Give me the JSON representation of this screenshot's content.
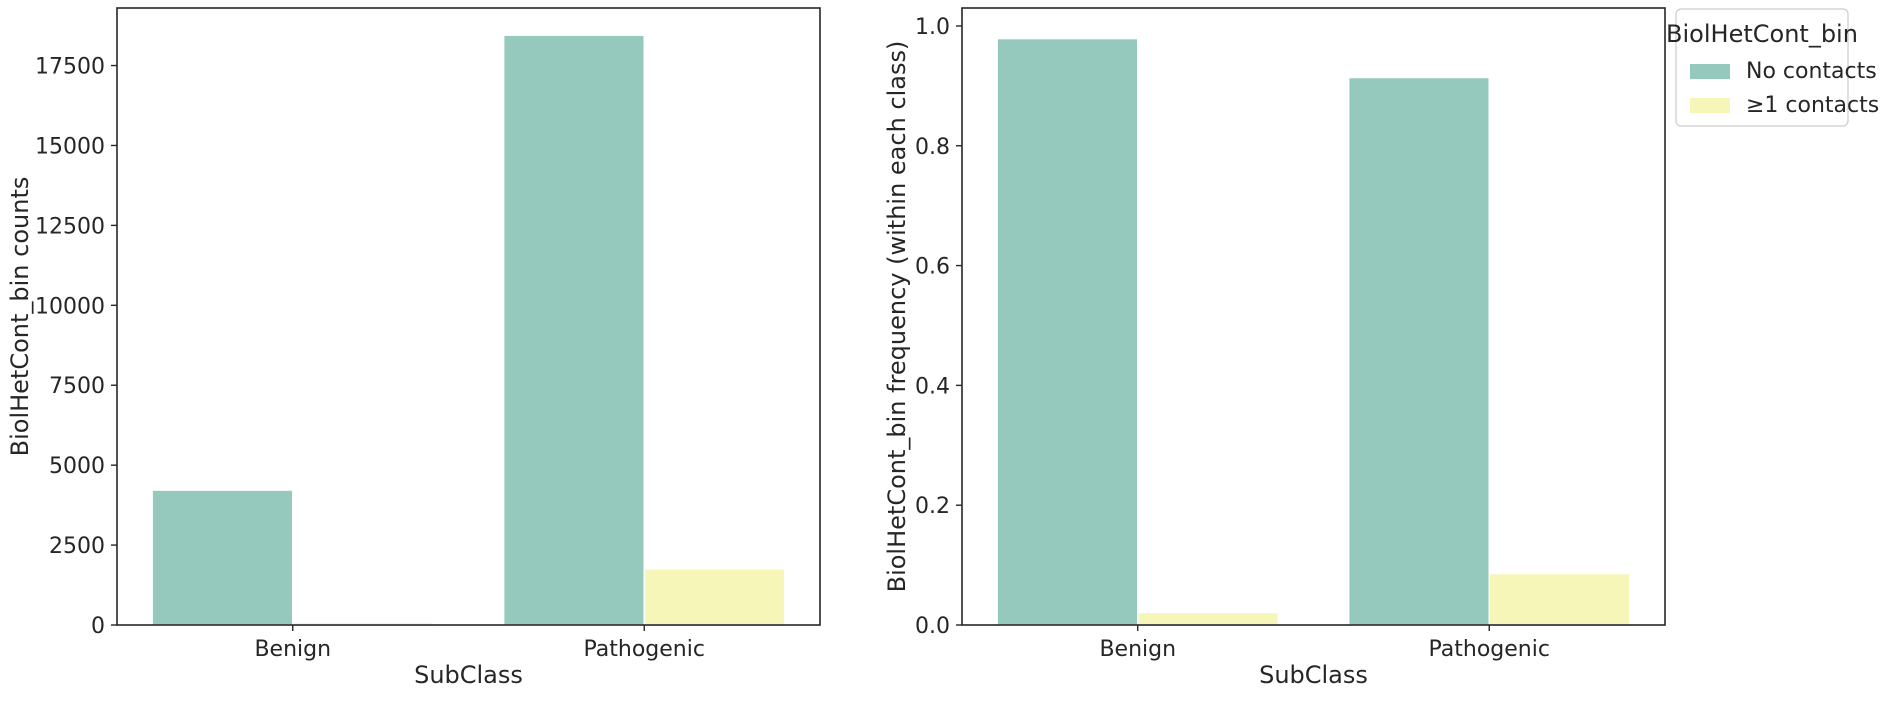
{
  "chart_data": [
    {
      "type": "bar",
      "categories": [
        "Benign",
        "Pathogenic"
      ],
      "series": [
        {
          "name": "No contacts",
          "values": [
            4220,
            18450
          ]
        },
        {
          "name": "≥1 contacts",
          "values": [
            80,
            1760
          ]
        }
      ],
      "xlabel": "SubClass",
      "ylabel": "BiolHetCont_bin counts",
      "ylim": [
        0,
        19300
      ],
      "yticks": [
        0,
        2500,
        5000,
        7500,
        10000,
        12500,
        15000,
        17500
      ],
      "legend": false,
      "grid": false
    },
    {
      "type": "bar",
      "categories": [
        "Benign",
        "Pathogenic"
      ],
      "series": [
        {
          "name": "No contacts",
          "values": [
            0.979,
            0.914
          ]
        },
        {
          "name": "≥1 contacts",
          "values": [
            0.021,
            0.086
          ]
        }
      ],
      "xlabel": "SubClass",
      "ylabel": "BiolHetCont_bin frequency (within each class)",
      "ylim": [
        0,
        1.03
      ],
      "yticks": [
        0.0,
        0.2,
        0.4,
        0.6,
        0.8,
        1.0
      ],
      "legend": true,
      "legend_placement": "outside top-right",
      "legend_title": "BiolHetCont_bin",
      "grid": false
    }
  ],
  "colors": {
    "No contacts": "#96c9be",
    "≥1 contacts": "#f7f6b9",
    "axes": "#262626"
  }
}
